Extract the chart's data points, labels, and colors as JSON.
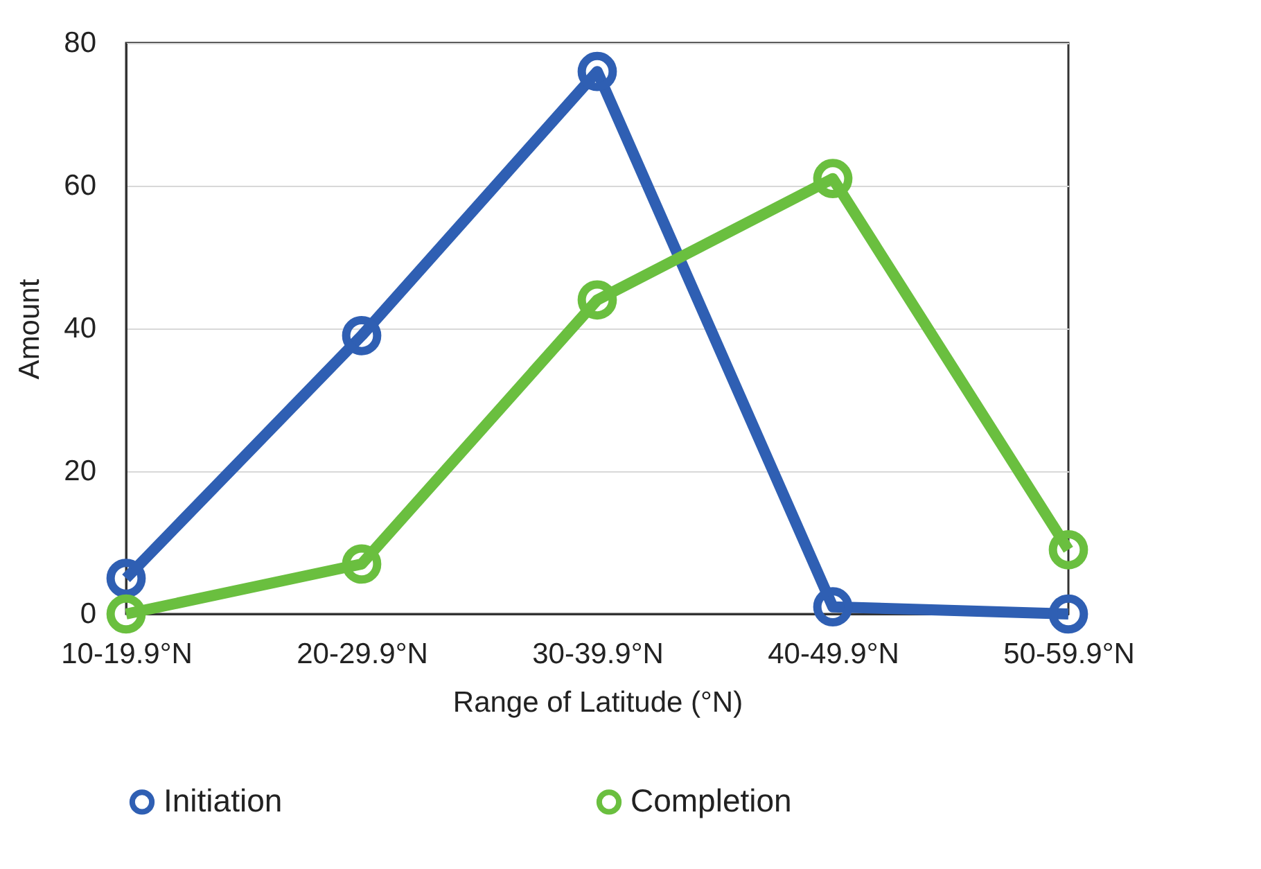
{
  "chart_data": {
    "type": "line",
    "xlabel": "Range of Latitude (°N)",
    "ylabel": "Amount",
    "categories": [
      "10-19.9°N",
      "20-29.9°N",
      "30-39.9°N",
      "40-49.9°N",
      "50-59.9°N"
    ],
    "series": [
      {
        "name": "Initiation",
        "color": "#2f5fb3",
        "values": [
          5,
          39,
          76,
          1,
          0
        ]
      },
      {
        "name": "Completion",
        "color": "#6abf3f",
        "values": [
          0,
          7,
          44,
          61,
          9
        ]
      }
    ],
    "ylim": [
      0,
      80
    ],
    "yticks": [
      0,
      20,
      40,
      60,
      80
    ],
    "grid": "y",
    "legend": "bottom",
    "marker": "circle",
    "line_style": "solid"
  }
}
